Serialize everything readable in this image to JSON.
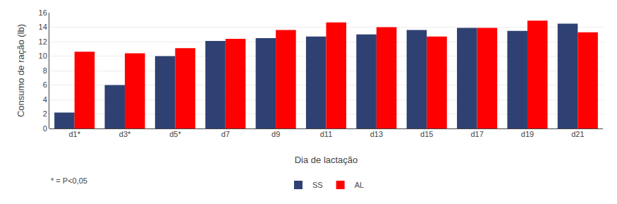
{
  "chart_data": {
    "type": "bar",
    "categories": [
      "d1*",
      "d3*",
      "d5*",
      "d7",
      "d9",
      "d11",
      "d13",
      "d15",
      "d17",
      "d19",
      "d21"
    ],
    "series": [
      {
        "name": "SS",
        "color": "#2E4172",
        "values": [
          2.2,
          6.0,
          10.0,
          12.1,
          12.5,
          12.7,
          13.0,
          13.6,
          13.9,
          13.5,
          14.5
        ]
      },
      {
        "name": "AL",
        "color": "#FF0000",
        "values": [
          10.6,
          10.4,
          11.1,
          12.4,
          13.6,
          14.65,
          14.0,
          12.7,
          13.9,
          14.9,
          13.3
        ]
      }
    ],
    "ylabel": "Consumo de ração (lb)",
    "xlabel": "Dia de lactação",
    "annotations": [
      "* = P<0,05"
    ],
    "ylim": [
      0,
      16
    ],
    "yticks": [
      0,
      2,
      4,
      6,
      8,
      10,
      12,
      14,
      16
    ],
    "grid": true,
    "legend": "bottom"
  }
}
